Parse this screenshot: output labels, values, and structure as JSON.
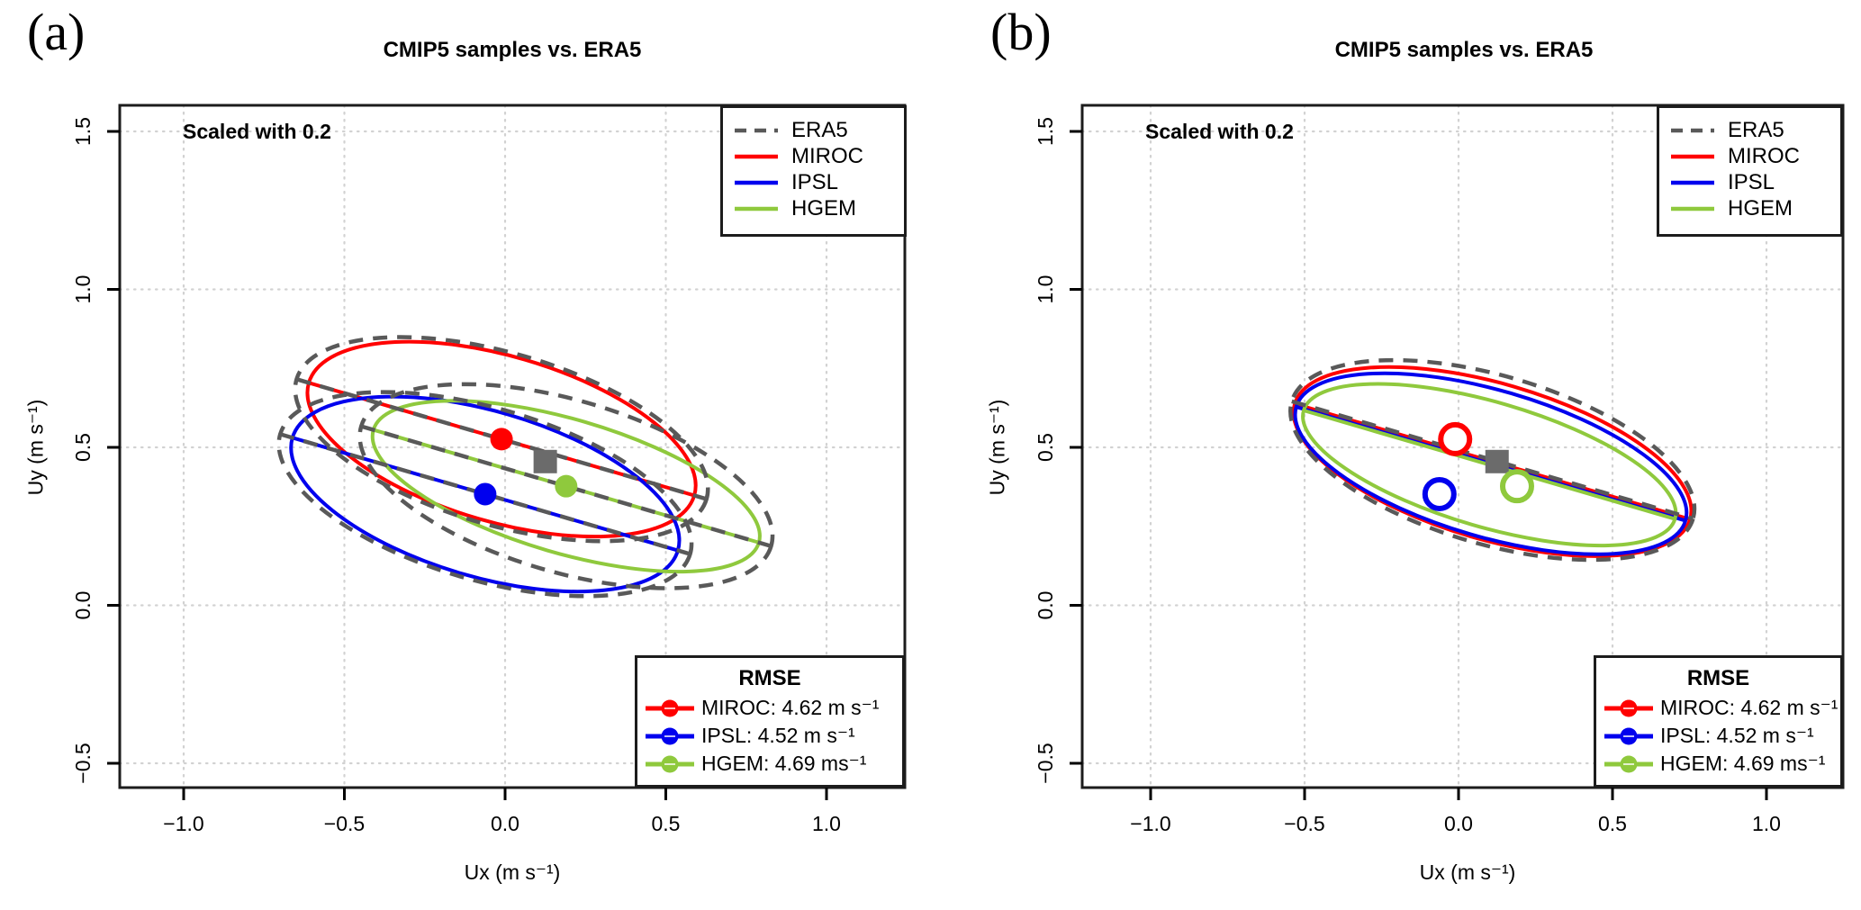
{
  "figure": {
    "background": "#FFFFFF",
    "border_color": "#1c1c1c",
    "grid_color": "#D2D2D2"
  },
  "chart_data": [
    {
      "type": "scatter",
      "panel_label": "(a)",
      "title": "CMIP5 samples vs. ERA5",
      "annotation": "Scaled with 0.2",
      "xlabel": "Ux (m s⁻¹)",
      "ylabel": "Uy (m s⁻¹)",
      "xlim": [
        -1.2,
        1.25
      ],
      "ylim": [
        -0.58,
        1.58
      ],
      "x_ticks": [
        -1.0,
        -0.5,
        0.0,
        0.5,
        1.0
      ],
      "x_tick_labels": [
        "−1.0",
        "−0.5",
        "0.0",
        "0.5",
        "1.0"
      ],
      "y_ticks": [
        -0.5,
        0.0,
        0.5,
        1.0,
        1.5
      ],
      "y_tick_labels": [
        "−0.5",
        "0.0",
        "0.5",
        "1.0",
        "1.5"
      ],
      "grid": true,
      "legend": {
        "position": "top-right",
        "items": [
          {
            "label": "ERA5",
            "color": "#595959",
            "style": "dashed"
          },
          {
            "label": "MIROC",
            "color": "#FF0000",
            "style": "solid"
          },
          {
            "label": "IPSL",
            "color": "#0000EE",
            "style": "solid"
          },
          {
            "label": "HGEM",
            "color": "#8FC93D",
            "style": "solid"
          }
        ]
      },
      "rmse_box": {
        "title": "RMSE",
        "items": [
          {
            "label": "MIROC: 4.62 m s⁻¹",
            "color": "#FF0000"
          },
          {
            "label": "IPSL: 4.52 m s⁻¹",
            "color": "#0000EE"
          },
          {
            "label": "HGEM: 4.69 ms⁻¹",
            "color": "#8FC93D"
          }
        ]
      },
      "means": [
        {
          "name": "ERA5",
          "x": 0.125,
          "y": 0.455,
          "marker": "square-filled",
          "color": "#6B6B6B"
        },
        {
          "name": "MIROC",
          "x": -0.011,
          "y": 0.526,
          "marker": "circle-filled",
          "color": "#FF0000"
        },
        {
          "name": "IPSL",
          "x": -0.062,
          "y": 0.352,
          "marker": "circle-filled",
          "color": "#0000EE"
        },
        {
          "name": "HGEM",
          "x": 0.19,
          "y": 0.377,
          "marker": "circle-filled",
          "color": "#8FC93D"
        }
      ],
      "ellipses": [
        {
          "name": "MIROC",
          "cx": -0.011,
          "cy": 0.526,
          "a": 0.63,
          "b": 0.26,
          "angle_deg": -16.3,
          "color": "#FF0000",
          "style": "solid"
        },
        {
          "name": "IPSL",
          "cx": -0.062,
          "cy": 0.352,
          "a": 0.63,
          "b": 0.26,
          "angle_deg": -16.3,
          "color": "#0000EE",
          "style": "solid"
        },
        {
          "name": "HGEM",
          "cx": 0.19,
          "cy": 0.377,
          "a": 0.63,
          "b": 0.21,
          "angle_deg": -16.3,
          "color": "#8FC93D",
          "style": "solid"
        },
        {
          "name": "ERA5 at MIROC mean",
          "cx": -0.011,
          "cy": 0.526,
          "a": 0.67,
          "b": 0.27,
          "angle_deg": -16.3,
          "color": "#595959",
          "style": "dashed"
        },
        {
          "name": "ERA5 at IPSL mean",
          "cx": -0.062,
          "cy": 0.352,
          "a": 0.67,
          "b": 0.27,
          "angle_deg": -16.3,
          "color": "#595959",
          "style": "dashed"
        },
        {
          "name": "ERA5 at HGEM mean",
          "cx": 0.19,
          "cy": 0.377,
          "a": 0.67,
          "b": 0.27,
          "angle_deg": -16.3,
          "color": "#595959",
          "style": "dashed"
        }
      ]
    },
    {
      "type": "scatter",
      "panel_label": "(b)",
      "title": "CMIP5 samples vs. ERA5",
      "annotation": "Scaled with 0.2",
      "xlabel": "Ux (m s⁻¹)",
      "ylabel": "Uy (m s⁻¹)",
      "xlim": [
        -1.2,
        1.25
      ],
      "ylim": [
        -0.58,
        1.58
      ],
      "x_ticks": [
        -1.0,
        -0.5,
        0.0,
        0.5,
        1.0
      ],
      "x_tick_labels": [
        "−1.0",
        "−0.5",
        "0.0",
        "0.5",
        "1.0"
      ],
      "y_ticks": [
        -0.5,
        0.0,
        0.5,
        1.0,
        1.5
      ],
      "y_tick_labels": [
        "−0.5",
        "0.0",
        "0.5",
        "1.0",
        "1.5"
      ],
      "grid": true,
      "legend": {
        "position": "top-right",
        "items": [
          {
            "label": "ERA5",
            "color": "#595959",
            "style": "dashed"
          },
          {
            "label": "MIROC",
            "color": "#FF0000",
            "style": "solid"
          },
          {
            "label": "IPSL",
            "color": "#0000EE",
            "style": "solid"
          },
          {
            "label": "HGEM",
            "color": "#8FC93D",
            "style": "solid"
          }
        ]
      },
      "rmse_box": {
        "title": "RMSE",
        "items": [
          {
            "label": "MIROC: 4.62 m s⁻¹",
            "color": "#FF0000"
          },
          {
            "label": "IPSL: 4.52 m s⁻¹",
            "color": "#0000EE"
          },
          {
            "label": "HGEM: 4.69 ms⁻¹",
            "color": "#8FC93D"
          }
        ]
      },
      "means": [
        {
          "name": "ERA5",
          "x": 0.125,
          "y": 0.455,
          "marker": "square-filled",
          "color": "#6B6B6B"
        },
        {
          "name": "MIROC",
          "x": -0.011,
          "y": 0.526,
          "marker": "circle-open",
          "color": "#FF0000"
        },
        {
          "name": "IPSL",
          "x": -0.062,
          "y": 0.352,
          "marker": "circle-open",
          "color": "#0000EE"
        },
        {
          "name": "HGEM",
          "x": 0.19,
          "y": 0.377,
          "marker": "circle-open",
          "color": "#8FC93D"
        }
      ],
      "ellipses": [
        {
          "name": "MIROC",
          "cx": 0.11,
          "cy": 0.455,
          "a": 0.66,
          "b": 0.25,
          "angle_deg": -16.3,
          "color": "#FF0000",
          "style": "solid"
        },
        {
          "name": "IPSL",
          "cx": 0.105,
          "cy": 0.448,
          "a": 0.65,
          "b": 0.235,
          "angle_deg": -16.3,
          "color": "#0000EE",
          "style": "solid"
        },
        {
          "name": "HGEM",
          "cx": 0.1,
          "cy": 0.445,
          "a": 0.62,
          "b": 0.2,
          "angle_deg": -16.3,
          "color": "#8FC93D",
          "style": "solid"
        },
        {
          "name": "ERA5",
          "cx": 0.11,
          "cy": 0.46,
          "a": 0.67,
          "b": 0.27,
          "angle_deg": -16.3,
          "color": "#595959",
          "style": "dashed"
        }
      ]
    }
  ]
}
